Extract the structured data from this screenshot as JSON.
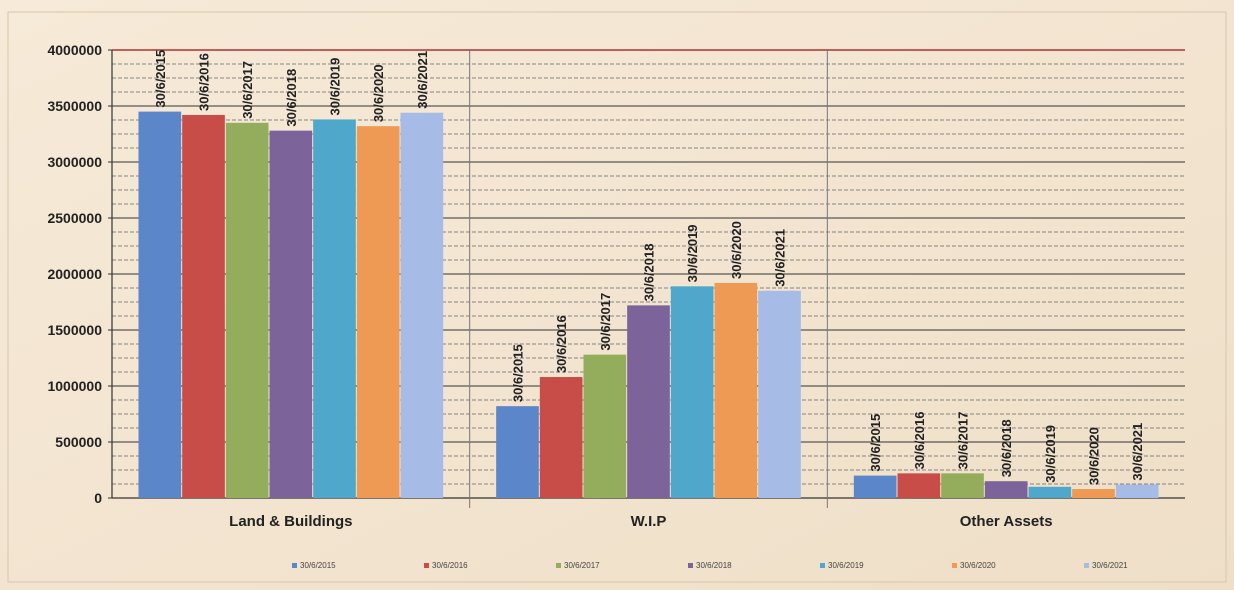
{
  "chart_data": {
    "type": "bar",
    "categories": [
      "Land & Buildings",
      "W.I.P",
      "Other Assets"
    ],
    "ylim": [
      0,
      4000000
    ],
    "yticks": [
      "0",
      "500000",
      "1000000",
      "1500000",
      "2000000",
      "2500000",
      "3000000",
      "3500000",
      "4000000"
    ],
    "grid": true,
    "legend_position": "bottom",
    "series": [
      {
        "name": "30/6/2015",
        "color": "#5b86c9",
        "values": [
          3450000,
          820000,
          200000
        ]
      },
      {
        "name": "30/6/2016",
        "color": "#c84c48",
        "values": [
          3420000,
          1080000,
          220000
        ]
      },
      {
        "name": "30/6/2017",
        "color": "#93ad5c",
        "values": [
          3350000,
          1280000,
          220000
        ]
      },
      {
        "name": "30/6/2018",
        "color": "#7c6399",
        "values": [
          3280000,
          1720000,
          150000
        ]
      },
      {
        "name": "30/6/2019",
        "color": "#4fa8cc",
        "values": [
          3380000,
          1890000,
          100000
        ]
      },
      {
        "name": "30/6/2020",
        "color": "#ee9a55",
        "values": [
          3320000,
          1920000,
          80000
        ]
      },
      {
        "name": "30/6/2021",
        "color": "#a6bbe6",
        "values": [
          3440000,
          1850000,
          120000
        ]
      }
    ]
  }
}
